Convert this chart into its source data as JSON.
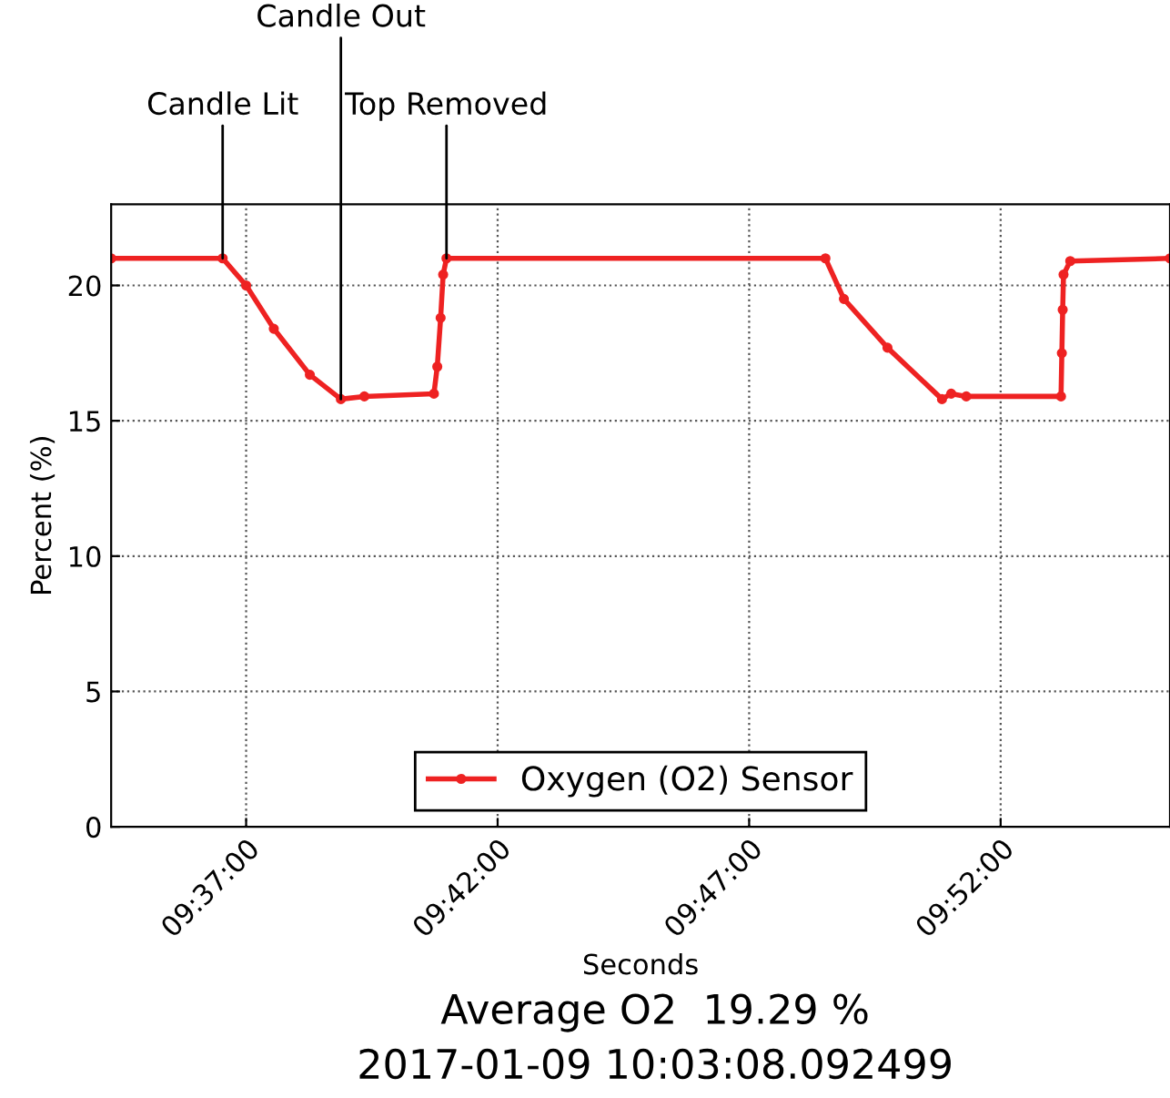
{
  "chart_data": {
    "type": "line",
    "xlabel": "Seconds",
    "ylabel": "Percent (%)",
    "x": [
      "2017-01-09T09:34:19",
      "2017-01-09T09:36:32",
      "2017-01-09T09:37:00",
      "2017-01-09T09:37:33",
      "2017-01-09T09:38:16",
      "2017-01-09T09:38:53",
      "2017-01-09T09:39:21",
      "2017-01-09T09:40:44",
      "2017-01-09T09:40:48",
      "2017-01-09T09:40:52",
      "2017-01-09T09:40:55",
      "2017-01-09T09:40:59",
      "2017-01-09T09:48:31",
      "2017-01-09T09:48:53",
      "2017-01-09T09:49:45",
      "2017-01-09T09:50:50",
      "2017-01-09T09:51:01",
      "2017-01-09T09:51:19",
      "2017-01-09T09:53:12",
      "2017-01-09T09:53:13",
      "2017-01-09T09:53:14",
      "2017-01-09T09:53:15",
      "2017-01-09T09:53:23",
      "2017-01-09T09:55:22"
    ],
    "series": [
      {
        "name": "Oxygen (O2) Sensor",
        "color": "#ee2222",
        "values": [
          21.0,
          21.0,
          20.0,
          18.4,
          16.7,
          15.8,
          15.9,
          16.0,
          17.0,
          18.8,
          20.4,
          21.0,
          21.0,
          19.5,
          17.7,
          15.8,
          16.0,
          15.9,
          15.9,
          17.5,
          19.1,
          20.4,
          20.9,
          21.0
        ]
      }
    ],
    "xlim": [
      "2017-01-09T09:34:19",
      "2017-01-09T09:55:22"
    ],
    "xticks": [
      {
        "value": "2017-01-09T09:37:00",
        "label": "09:37:00"
      },
      {
        "value": "2017-01-09T09:42:00",
        "label": "09:42:00"
      },
      {
        "value": "2017-01-09T09:47:00",
        "label": "09:47:00"
      },
      {
        "value": "2017-01-09T09:52:00",
        "label": "09:52:00"
      }
    ],
    "ylim": [
      0,
      23
    ],
    "yticks": [
      0,
      5,
      10,
      15,
      20
    ],
    "grid": true,
    "legend": "bottom",
    "marker": "circle",
    "line_style": "solid",
    "annotations": [
      {
        "text": "Candle Lit",
        "x": "2017-01-09T09:36:32",
        "y": 21.0
      },
      {
        "text": "Candle Out",
        "x": "2017-01-09T09:38:53",
        "y": 15.8
      },
      {
        "text": "Top Removed",
        "x": "2017-01-09T09:40:59",
        "y": 21.0
      },
      "Average O2  19.29 %",
      "2017-01-09 10:03:08.092499"
    ]
  }
}
